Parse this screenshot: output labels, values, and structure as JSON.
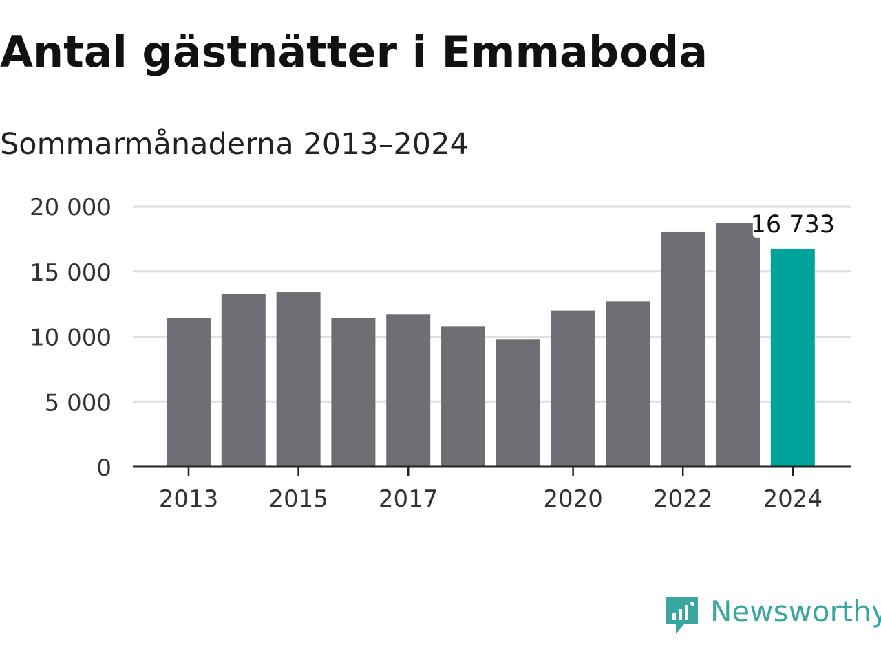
{
  "chart_data": {
    "type": "bar",
    "title": "Antal gästnätter i Emmaboda",
    "subtitle": "Sommarmånaderna 2013–2024",
    "categories": [
      "2013",
      "2014",
      "2015",
      "2016",
      "2017",
      "2018",
      "2019",
      "2020",
      "2021",
      "2022",
      "2023",
      "2024"
    ],
    "values": [
      11400,
      13250,
      13400,
      11400,
      11700,
      10800,
      9800,
      12000,
      12700,
      18050,
      18700,
      16733
    ],
    "x_tick_labels": [
      "2013",
      "2015",
      "2017",
      "2020",
      "2022",
      "2024"
    ],
    "y_ticks": [
      0,
      5000,
      10000,
      15000,
      20000
    ],
    "y_tick_labels": [
      "0",
      "5 000",
      "10 000",
      "15 000",
      "20 000"
    ],
    "ylim": [
      0,
      20000
    ],
    "grid": true,
    "highlight_index": 11,
    "highlight_label": "16 733",
    "colors": {
      "bar": "#6f6e74",
      "highlight": "#00a39a",
      "grid": "#e0e0e0",
      "axis": "#222222"
    }
  },
  "brand": {
    "name": "Newsworthy",
    "icon": "newsworthy-logo-icon",
    "color": "#3aa6a0"
  }
}
